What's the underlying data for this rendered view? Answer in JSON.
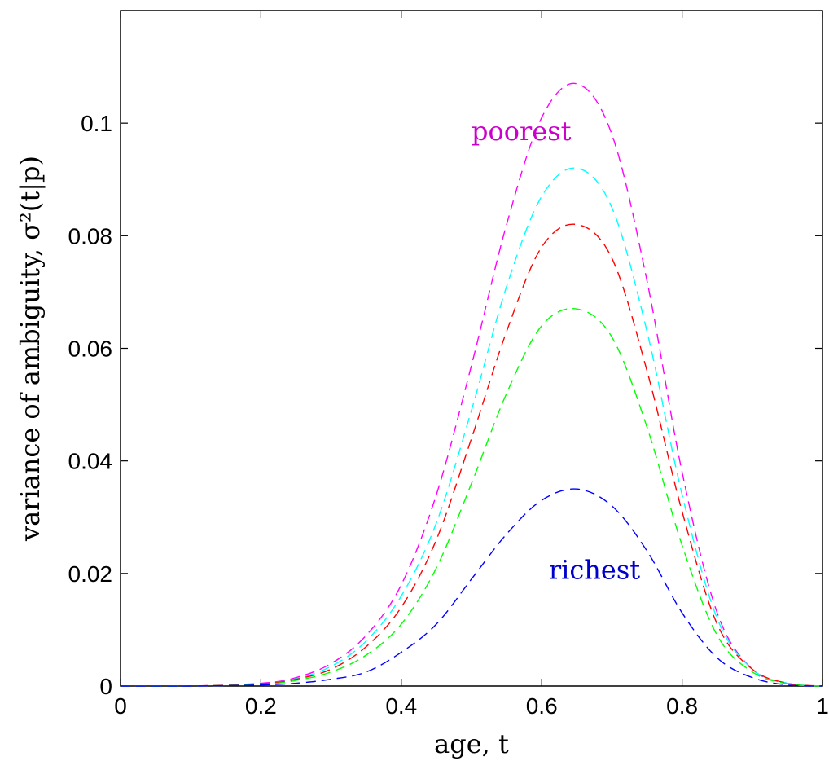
{
  "chart_data": {
    "type": "line",
    "title": "",
    "xlabel": "age, t",
    "ylabel": "variance of ambiguity, σ²(t|p)",
    "xlim": [
      0,
      1
    ],
    "ylim": [
      0,
      0.12
    ],
    "xticks": [
      0,
      0.2,
      0.4,
      0.6,
      0.8,
      1
    ],
    "xtick_labels": [
      "0",
      "0.2",
      "0.4",
      "0.6",
      "0.8",
      "1"
    ],
    "yticks": [
      0,
      0.02,
      0.04,
      0.06,
      0.08,
      0.1
    ],
    "ytick_labels": [
      "0",
      "0.02",
      "0.04",
      "0.06",
      "0.08",
      "0.1"
    ],
    "grid": false,
    "line_style": "dashed",
    "series": [
      {
        "color": "#ff00ff",
        "x": [
          0,
          0.1,
          0.2,
          0.25,
          0.3,
          0.35,
          0.4,
          0.45,
          0.5,
          0.55,
          0.6,
          0.65,
          0.7,
          0.75,
          0.8,
          0.85,
          0.9,
          0.95,
          1.0
        ],
        "y": [
          0,
          0,
          0.0005,
          0.0015,
          0.004,
          0.009,
          0.018,
          0.034,
          0.057,
          0.082,
          0.101,
          0.107,
          0.098,
          0.072,
          0.038,
          0.013,
          0.003,
          0.0005,
          0
        ]
      },
      {
        "color": "#00ffff",
        "x": [
          0,
          0.1,
          0.2,
          0.25,
          0.3,
          0.35,
          0.4,
          0.45,
          0.5,
          0.55,
          0.6,
          0.65,
          0.7,
          0.75,
          0.8,
          0.85,
          0.9,
          0.95,
          1.0
        ],
        "y": [
          0,
          0,
          0.0004,
          0.0013,
          0.0035,
          0.008,
          0.016,
          0.029,
          0.049,
          0.071,
          0.087,
          0.092,
          0.085,
          0.063,
          0.034,
          0.012,
          0.003,
          0.0005,
          0
        ]
      },
      {
        "color": "#ff0000",
        "x": [
          0,
          0.1,
          0.2,
          0.25,
          0.3,
          0.35,
          0.4,
          0.45,
          0.5,
          0.55,
          0.6,
          0.65,
          0.7,
          0.75,
          0.8,
          0.85,
          0.9,
          0.95,
          1.0
        ],
        "y": [
          0,
          0,
          0.0004,
          0.0012,
          0.003,
          0.007,
          0.014,
          0.026,
          0.044,
          0.063,
          0.078,
          0.082,
          0.076,
          0.056,
          0.031,
          0.011,
          0.003,
          0.0005,
          0
        ]
      },
      {
        "color": "#00ff00",
        "x": [
          0,
          0.1,
          0.2,
          0.25,
          0.3,
          0.35,
          0.4,
          0.45,
          0.5,
          0.55,
          0.6,
          0.65,
          0.7,
          0.75,
          0.8,
          0.85,
          0.9,
          0.95,
          1.0
        ],
        "y": [
          0,
          0,
          0.0003,
          0.001,
          0.0025,
          0.0055,
          0.011,
          0.021,
          0.036,
          0.052,
          0.064,
          0.067,
          0.062,
          0.046,
          0.025,
          0.009,
          0.0025,
          0.0004,
          0
        ]
      },
      {
        "color": "#0000ff",
        "x": [
          0,
          0.1,
          0.2,
          0.25,
          0.3,
          0.35,
          0.4,
          0.45,
          0.5,
          0.55,
          0.6,
          0.65,
          0.7,
          0.75,
          0.8,
          0.85,
          0.9,
          0.95,
          1.0
        ],
        "y": [
          0,
          0,
          0.0002,
          0.0005,
          0.0012,
          0.0025,
          0.006,
          0.011,
          0.019,
          0.027,
          0.033,
          0.035,
          0.032,
          0.024,
          0.013,
          0.005,
          0.0015,
          0.0002,
          0
        ]
      }
    ],
    "annotations": [
      {
        "text": "poorest",
        "x": 0.5,
        "y": 0.097,
        "color": "#cc00cc"
      },
      {
        "text": "richest",
        "x": 0.61,
        "y": 0.019,
        "color": "#0000cc"
      }
    ]
  }
}
